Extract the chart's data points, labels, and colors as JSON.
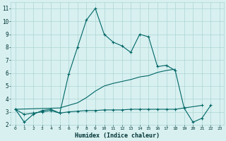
{
  "xlabel": "Humidex (Indice chaleur)",
  "x": [
    0,
    1,
    2,
    3,
    4,
    5,
    6,
    7,
    8,
    9,
    10,
    11,
    12,
    13,
    14,
    15,
    16,
    17,
    18,
    19,
    20,
    21,
    22,
    23
  ],
  "line1_y": [
    3.2,
    2.2,
    2.8,
    3.1,
    3.2,
    2.9,
    5.9,
    8.0,
    10.1,
    11.0,
    9.0,
    8.4,
    8.1,
    7.6,
    9.0,
    8.8,
    6.5,
    6.6,
    6.2,
    3.3,
    null,
    3.5,
    null,
    null
  ],
  "line2_y": [
    3.2,
    2.8,
    2.9,
    3.0,
    3.1,
    2.9,
    3.0,
    3.05,
    3.1,
    3.1,
    3.15,
    3.15,
    3.15,
    3.2,
    3.2,
    3.2,
    3.2,
    3.2,
    3.2,
    3.3,
    2.2,
    2.5,
    3.5,
    null
  ],
  "line3_y": [
    3.2,
    null,
    null,
    null,
    null,
    3.3,
    3.5,
    3.7,
    4.1,
    4.6,
    5.0,
    5.2,
    5.35,
    5.5,
    5.7,
    5.8,
    6.05,
    6.2,
    6.3,
    null,
    null,
    null,
    null,
    null
  ],
  "line_color": "#006666",
  "bg_color": "#d8f0f0",
  "grid_color": "#aed4d4",
  "ylim_min": 2,
  "ylim_max": 11.5,
  "xlim_min": -0.5,
  "xlim_max": 23.5
}
